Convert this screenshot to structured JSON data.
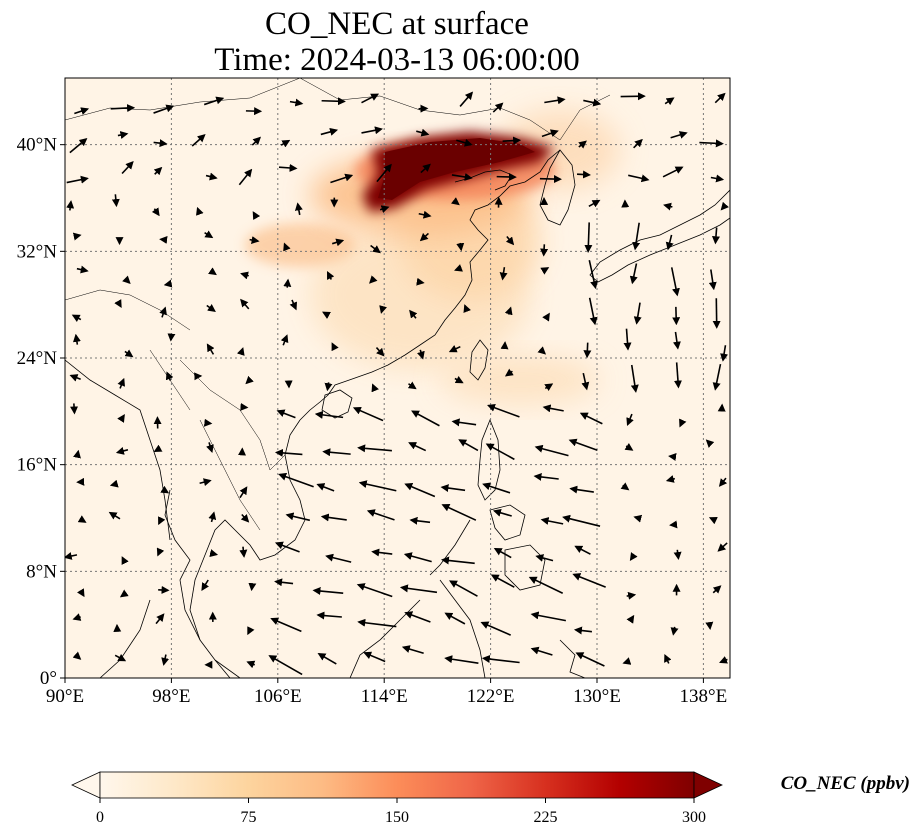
{
  "title": {
    "line1": "CO_NEC at surface",
    "line2": "Time: 2024-03-13 06:00:00"
  },
  "map": {
    "lon_range": [
      90,
      140
    ],
    "lat_range": [
      0,
      45
    ],
    "lon_ticks": [
      {
        "value": 90,
        "label": "90°E"
      },
      {
        "value": 98,
        "label": "98°E"
      },
      {
        "value": 106,
        "label": "106°E"
      },
      {
        "value": 114,
        "label": "114°E"
      },
      {
        "value": 122,
        "label": "122°E"
      },
      {
        "value": 130,
        "label": "130°E"
      },
      {
        "value": 138,
        "label": "138°E"
      }
    ],
    "lat_ticks": [
      {
        "value": 0,
        "label": "0°"
      },
      {
        "value": 8,
        "label": "8°N"
      },
      {
        "value": 16,
        "label": "16°N"
      },
      {
        "value": 24,
        "label": "24°N"
      },
      {
        "value": 32,
        "label": "32°N"
      },
      {
        "value": 40,
        "label": "40°N"
      }
    ],
    "gridlines": true,
    "field_colormap": "OrRd"
  },
  "colorbar": {
    "label": "CO_NEC (ppbv)",
    "range": [
      0,
      300
    ],
    "extend": "both",
    "ticks": [
      {
        "value": 0,
        "label": "0"
      },
      {
        "value": 75,
        "label": "75"
      },
      {
        "value": 150,
        "label": "150"
      },
      {
        "value": 225,
        "label": "225"
      },
      {
        "value": 300,
        "label": "300"
      }
    ],
    "stops": [
      "#fff7ec",
      "#fee8c8",
      "#fdd49e",
      "#fdbb84",
      "#fc8d59",
      "#ef6548",
      "#d7301f",
      "#b30000",
      "#7f0000"
    ]
  }
}
